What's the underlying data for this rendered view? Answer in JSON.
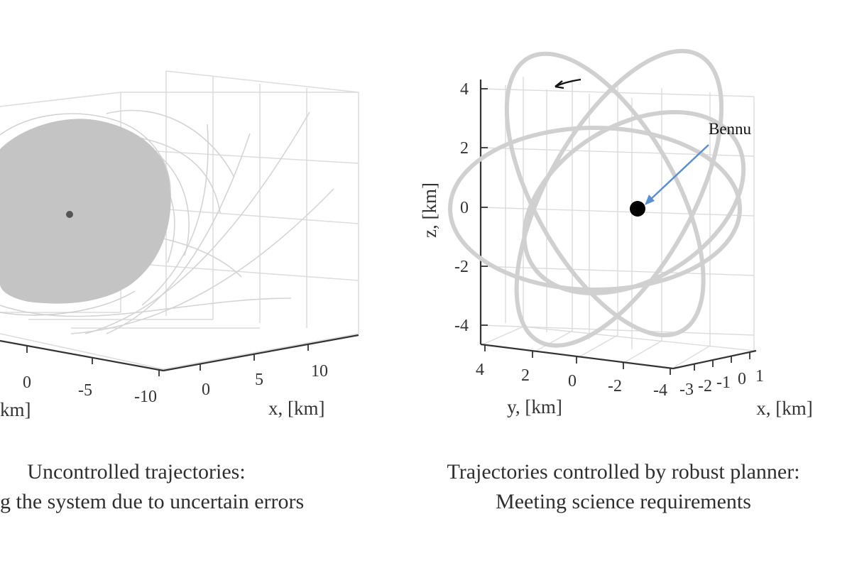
{
  "chart_data": [
    {
      "type": "line",
      "projection": "3d",
      "caption_line1": "Uncontrolled trajectories:",
      "caption_line2": "g the system due to uncertain errors",
      "xlabel": "x, [km]",
      "ylabel_partial": "km]",
      "zlabel": "",
      "x_ticks": [
        "0",
        "5",
        "10"
      ],
      "y_ticks": [
        "0",
        "-5",
        "-10"
      ],
      "z_ticks": [],
      "grid": true,
      "series_color": "#c4c4c4",
      "target_color": "#555555"
    },
    {
      "type": "line",
      "projection": "3d",
      "caption_line1": "Trajectories controlled by robust planner:",
      "caption_line2": "Meeting science requirements",
      "xlabel": "x, [km]",
      "ylabel": "y, [km]",
      "zlabel": "z, [km]",
      "x_ticks": [
        "-3",
        "-2",
        "-1",
        "0",
        "1"
      ],
      "y_ticks": [
        "4",
        "2",
        "0",
        "-2",
        "-4"
      ],
      "z_ticks": [
        "4",
        "2",
        "0",
        "-2",
        "-4"
      ],
      "zlim": [
        -4,
        4
      ],
      "ylim": [
        -4,
        4
      ],
      "xlim": [
        -3,
        1
      ],
      "grid": true,
      "annotation": "Bennu",
      "annotation_arrow_color": "#5b8fd0",
      "series_color": "#d0d0d0",
      "target_color": "#000000",
      "orbits": [
        {
          "a": 3.4,
          "b": 2.0,
          "incline": 0.0
        },
        {
          "a": 3.1,
          "b": 2.2,
          "incline": 1.05
        },
        {
          "a": 3.0,
          "b": 2.1,
          "incline": -1.05
        },
        {
          "a": 3.3,
          "b": 1.6,
          "incline": 2.1
        }
      ]
    }
  ]
}
